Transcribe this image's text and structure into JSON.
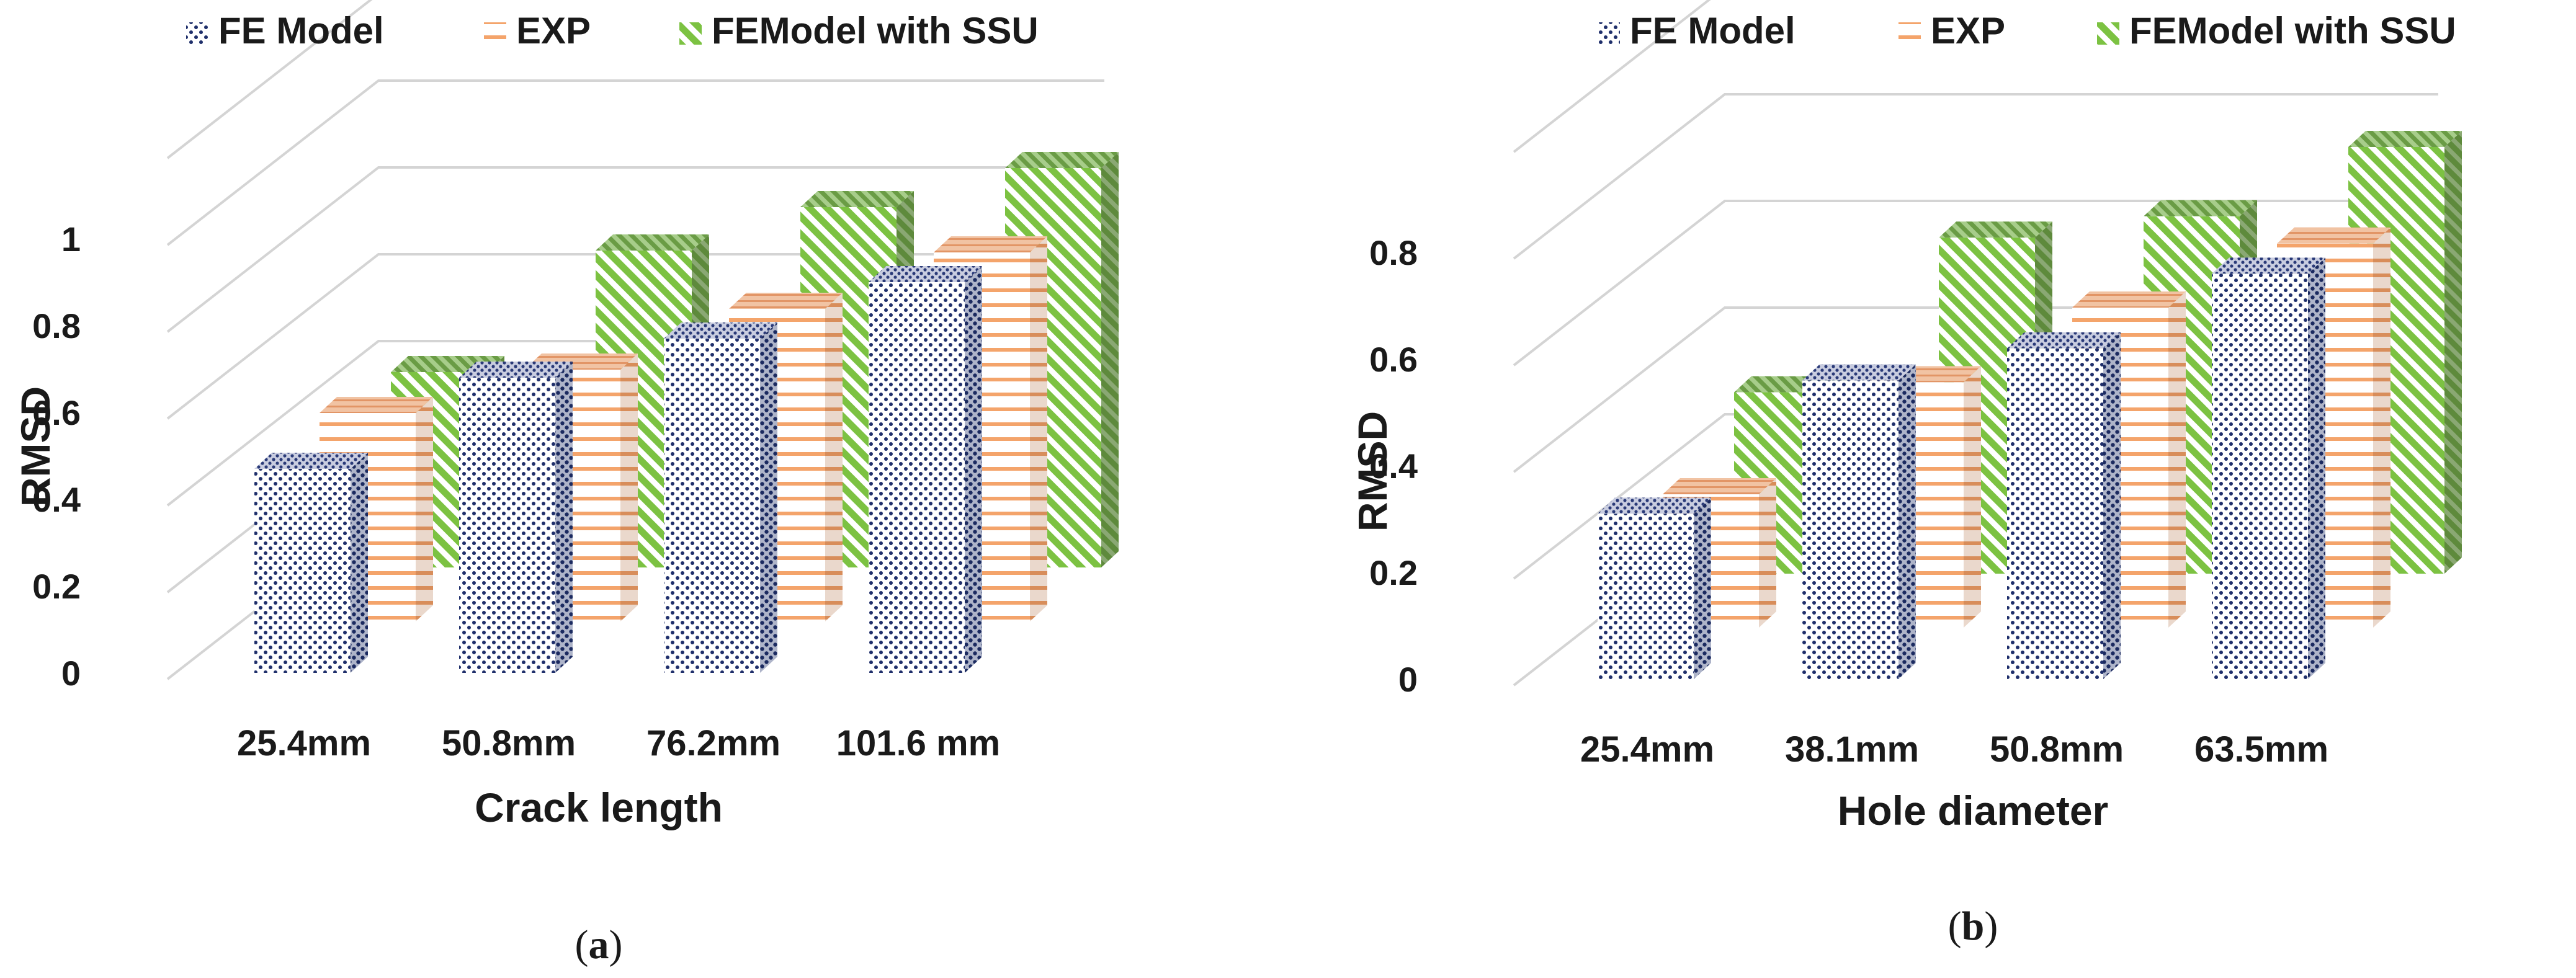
{
  "colors": {
    "fe_model": "#1f2f6b",
    "exp": "#f4a46b",
    "ssu": "#7cc242",
    "grid": "#d4d4d4",
    "text": "#1a1a1a"
  },
  "legend": [
    {
      "name": "FE Model",
      "pattern": "dots",
      "color": "#1f2f6b"
    },
    {
      "name": "EXP",
      "pattern": "hlines",
      "color": "#f4a46b"
    },
    {
      "name": "FEModel with SSU",
      "pattern": "diag",
      "color": "#7cc242"
    }
  ],
  "chart_data": [
    {
      "type": "bar",
      "style": "3d-clustered-columns",
      "caption": "(a)",
      "caption_letter": "a",
      "title": "",
      "xlabel": "Crack length",
      "ylabel": "RMSD",
      "categories": [
        "25.4mm",
        "50.8mm",
        "76.2mm",
        "101.6 mm"
      ],
      "ylim": [
        0,
        1.2
      ],
      "yticks": [
        "0",
        "0.2",
        "0.4",
        "0.6",
        "0.8",
        "1"
      ],
      "ytick_values": [
        0,
        0.2,
        0.4,
        0.6,
        0.8,
        1.0
      ],
      "series": [
        {
          "name": "FE Model",
          "values": [
            0.47,
            0.68,
            0.77,
            0.9
          ]
        },
        {
          "name": "EXP",
          "values": [
            0.48,
            0.58,
            0.72,
            0.85
          ]
        },
        {
          "name": "FEModel with SSU",
          "values": [
            0.45,
            0.73,
            0.83,
            0.92
          ]
        }
      ],
      "legend_position": "top",
      "grid": true
    },
    {
      "type": "bar",
      "style": "3d-clustered-columns",
      "caption": "(b)",
      "caption_letter": "b",
      "title": "",
      "xlabel": "Hole diameter",
      "ylabel": "RMSD",
      "categories": [
        "25.4mm",
        "38.1mm",
        "50.8mm",
        "63.5mm"
      ],
      "ylim": [
        0,
        1.0
      ],
      "yticks": [
        "0",
        "0.2",
        "0.4",
        "0.6",
        "0.8"
      ],
      "ytick_values": [
        0,
        0.2,
        0.4,
        0.6,
        0.8
      ],
      "series": [
        {
          "name": "FE Model",
          "values": [
            0.31,
            0.56,
            0.62,
            0.76
          ]
        },
        {
          "name": "EXP",
          "values": [
            0.25,
            0.46,
            0.6,
            0.72
          ]
        },
        {
          "name": "FEModel with SSU",
          "values": [
            0.34,
            0.63,
            0.67,
            0.8
          ]
        }
      ],
      "legend_position": "top",
      "grid": true
    }
  ]
}
